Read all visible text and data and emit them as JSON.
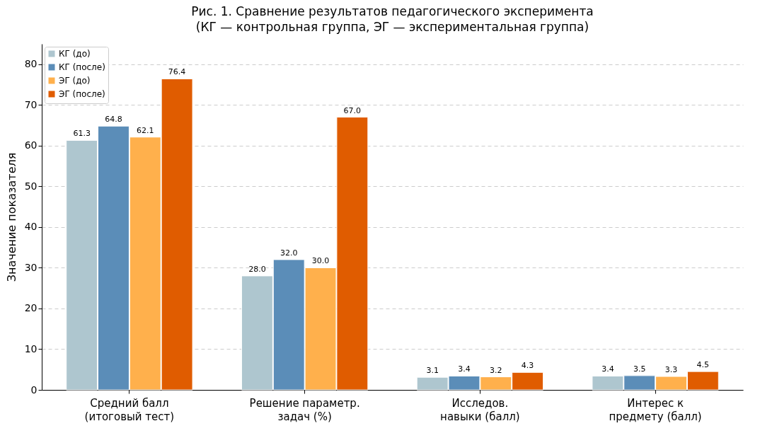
{
  "chart_data": {
    "type": "bar",
    "title": "Рис. 1. Сравнение результатов педагогического эксперимента\n(КГ — контрольная группа, ЭГ — экспериментальная группа)",
    "ylabel": "Значение показателя",
    "categories": [
      "Средний балл\n(итоговый тест)",
      "Решение параметр.\nзадач (%)",
      "Исследов.\nнавыки (балл)",
      "Интерес к\nпредмету (балл)"
    ],
    "series": [
      {
        "name": "КГ (до)",
        "color": "#aec6cf",
        "values": [
          61.3,
          28.0,
          3.1,
          3.4
        ],
        "value_labels": [
          "61.3",
          "28.0",
          "3.1",
          "3.4"
        ]
      },
      {
        "name": "КГ (после)",
        "color": "#5b8db8",
        "values": [
          64.8,
          32.0,
          3.4,
          3.5
        ],
        "value_labels": [
          "64.8",
          "32.0",
          "3.4",
          "3.5"
        ]
      },
      {
        "name": "ЭГ (до)",
        "color": "#ffb04c",
        "values": [
          62.1,
          30.0,
          3.2,
          3.3
        ],
        "value_labels": [
          "62.1",
          "30.0",
          "3.2",
          "3.3"
        ]
      },
      {
        "name": "ЭГ (после)",
        "color": "#e05c00",
        "values": [
          76.4,
          67.0,
          4.3,
          4.5
        ],
        "value_labels": [
          "76.4",
          "67.0",
          "4.3",
          "4.5"
        ]
      }
    ],
    "ylim": [
      0,
      85
    ],
    "yticks": [
      0,
      10,
      20,
      30,
      40,
      50,
      60,
      70,
      80
    ],
    "grid": "y",
    "legend": "top left"
  }
}
